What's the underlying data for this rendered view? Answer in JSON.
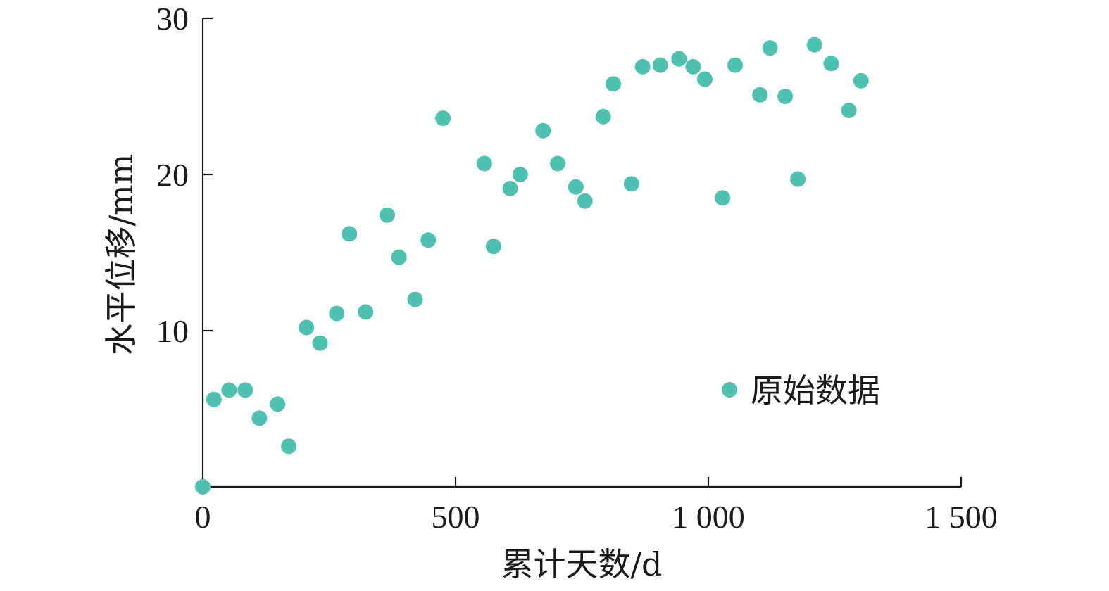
{
  "colors": {
    "marker": "#4fc1b0",
    "axis": "#1a1a1a"
  },
  "chart_data": {
    "type": "scatter",
    "xlabel": "累计天数/d",
    "ylabel": "水平位移/mm",
    "xlim": [
      0,
      1500
    ],
    "ylim": [
      0,
      30
    ],
    "x_ticks": [
      {
        "value": 0,
        "label": "0"
      },
      {
        "value": 500,
        "label": "500"
      },
      {
        "value": 1000,
        "label": "1 000"
      },
      {
        "value": 1500,
        "label": "1 500"
      }
    ],
    "y_ticks": [
      {
        "value": 10,
        "label": "10"
      },
      {
        "value": 20,
        "label": "20"
      },
      {
        "value": 30,
        "label": "30"
      }
    ],
    "grid": false,
    "legend_position": "right",
    "series": [
      {
        "name": "原始数据",
        "points": [
          [
            0,
            0
          ],
          [
            22,
            5.6
          ],
          [
            52,
            6.2
          ],
          [
            84,
            6.2
          ],
          [
            112,
            4.4
          ],
          [
            148,
            5.3
          ],
          [
            170,
            2.6
          ],
          [
            205,
            10.2
          ],
          [
            232,
            9.2
          ],
          [
            265,
            11.1
          ],
          [
            290,
            16.2
          ],
          [
            322,
            11.2
          ],
          [
            365,
            17.4
          ],
          [
            388,
            14.7
          ],
          [
            420,
            12.0
          ],
          [
            446,
            15.8
          ],
          [
            475,
            23.6
          ],
          [
            557,
            20.7
          ],
          [
            575,
            15.4
          ],
          [
            608,
            19.1
          ],
          [
            628,
            20.0
          ],
          [
            673,
            22.8
          ],
          [
            702,
            20.7
          ],
          [
            738,
            19.2
          ],
          [
            756,
            18.3
          ],
          [
            792,
            23.7
          ],
          [
            812,
            25.8
          ],
          [
            848,
            19.4
          ],
          [
            870,
            26.9
          ],
          [
            905,
            27.0
          ],
          [
            942,
            27.4
          ],
          [
            970,
            26.9
          ],
          [
            993,
            26.1
          ],
          [
            1028,
            18.5
          ],
          [
            1053,
            27.0
          ],
          [
            1102,
            25.1
          ],
          [
            1122,
            28.1
          ],
          [
            1152,
            25.0
          ],
          [
            1177,
            19.7
          ],
          [
            1210,
            28.3
          ],
          [
            1243,
            27.1
          ],
          [
            1278,
            24.1
          ],
          [
            1302,
            26.0
          ]
        ]
      }
    ]
  }
}
